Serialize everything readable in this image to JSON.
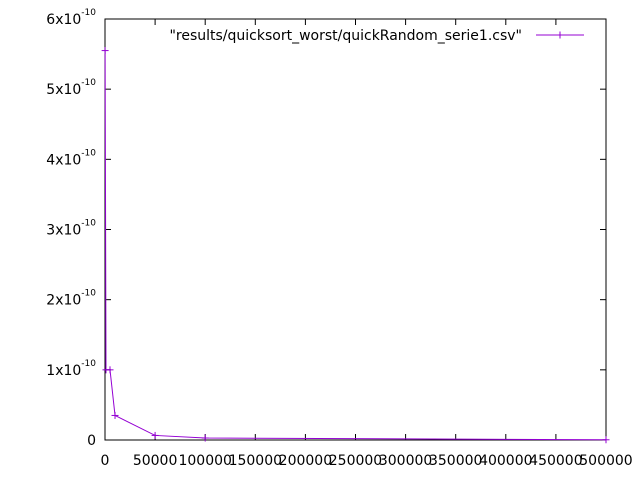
{
  "chart_data": {
    "type": "line",
    "title": "",
    "xlabel": "",
    "ylabel": "",
    "xlim": [
      0,
      500000
    ],
    "ylim": [
      0,
      6e-10
    ],
    "x_ticks": [
      0,
      50000,
      100000,
      150000,
      200000,
      250000,
      300000,
      350000,
      400000,
      450000,
      500000
    ],
    "x_tick_labels": [
      "0",
      "50000",
      "100000",
      "150000",
      "200000",
      "250000",
      "300000",
      "350000",
      "400000",
      "450000",
      "500000"
    ],
    "y_ticks": [
      0,
      1e-10,
      2e-10,
      3e-10,
      4e-10,
      5e-10,
      6e-10
    ],
    "y_tick_labels": [
      {
        "mantissa": "0",
        "exp": ""
      },
      {
        "mantissa": "1x10",
        "exp": "-10"
      },
      {
        "mantissa": "2x10",
        "exp": "-10"
      },
      {
        "mantissa": "3x10",
        "exp": "-10"
      },
      {
        "mantissa": "4x10",
        "exp": "-10"
      },
      {
        "mantissa": "5x10",
        "exp": "-10"
      },
      {
        "mantissa": "6x10",
        "exp": "-10"
      }
    ],
    "grid": false,
    "legend_position": "top-right",
    "series": [
      {
        "name": "\"results/quicksort_worst/quickRandom_serie1.csv\"",
        "color": "#9400d3",
        "marker": "plus",
        "points": [
          {
            "x": 100,
            "y": 5.55e-10
          },
          {
            "x": 1000,
            "y": 1e-10
          },
          {
            "x": 5000,
            "y": 1e-10
          },
          {
            "x": 10000,
            "y": 3.5e-11
          },
          {
            "x": 50000,
            "y": 6.5e-12
          },
          {
            "x": 100000,
            "y": 2.8e-12
          },
          {
            "x": 500000,
            "y": 3e-13
          }
        ]
      }
    ]
  }
}
